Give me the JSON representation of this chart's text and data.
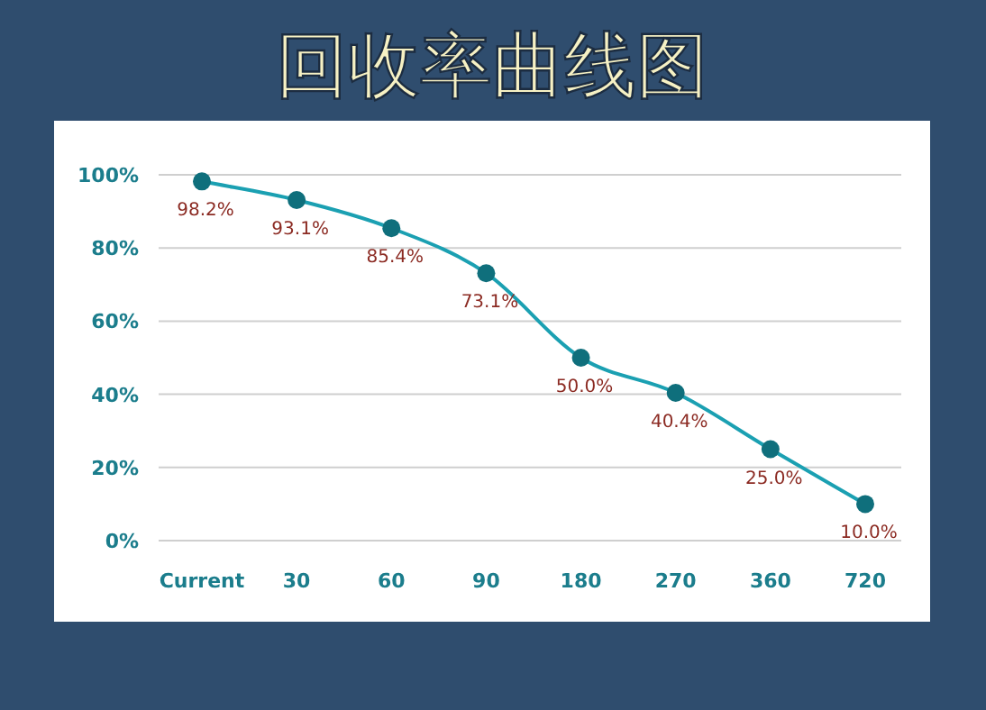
{
  "chart_data": {
    "type": "line",
    "title": "回收率曲线图",
    "categories": [
      "Current",
      "30",
      "60",
      "90",
      "180",
      "270",
      "360",
      "720"
    ],
    "series": [
      {
        "color": "#1ba0b2",
        "values": [
          98.2,
          93.1,
          85.4,
          73.1,
          50.0,
          40.4,
          25.0,
          10.0
        ]
      }
    ],
    "value_labels": [
      "98.2%",
      "93.1%",
      "85.4%",
      "73.1%",
      "50.0%",
      "40.4%",
      "25.0%",
      "10.0%"
    ],
    "ylim": [
      0,
      100
    ],
    "yticks": [
      {
        "value": 0,
        "label": "0%"
      },
      {
        "value": 20,
        "label": "20%"
      },
      {
        "value": 40,
        "label": "40%"
      },
      {
        "value": 60,
        "label": "60%"
      },
      {
        "value": 80,
        "label": "80%"
      },
      {
        "value": 100,
        "label": "100%"
      }
    ],
    "grid": "y",
    "marker": "circle",
    "line_style": "solid"
  }
}
